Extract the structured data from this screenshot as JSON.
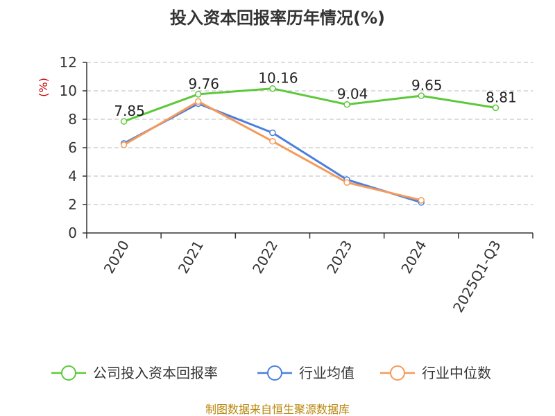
{
  "chart_data": {
    "type": "line",
    "title": "投入资本回报率历年情况(%)",
    "ylabel": "(%)",
    "xlabel": "",
    "ylim": [
      0,
      12
    ],
    "yticks": [
      0,
      2,
      4,
      6,
      8,
      10,
      12
    ],
    "grid": true,
    "categories": [
      "2020",
      "2021",
      "2022",
      "2023",
      "2024",
      "2025Q1-Q3"
    ],
    "series": [
      {
        "name": "公司投入资本回报率",
        "color": "#5cc93a",
        "values": [
          7.85,
          9.76,
          10.16,
          9.04,
          9.65,
          8.81
        ],
        "labels": [
          "7.85",
          "9.76",
          "10.16",
          "9.04",
          "9.65",
          "8.81"
        ]
      },
      {
        "name": "行业均值",
        "color": "#4a7fdd",
        "values": [
          6.3,
          9.1,
          7.05,
          3.75,
          2.15,
          null
        ]
      },
      {
        "name": "行业中位数",
        "color": "#f59a5a",
        "values": [
          6.2,
          9.25,
          6.45,
          3.55,
          2.3,
          null
        ]
      }
    ],
    "legend_position": "bottom",
    "source": "制图数据来自恒生聚源数据库"
  }
}
